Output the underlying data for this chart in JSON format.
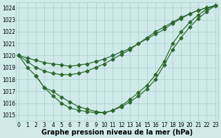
{
  "series": [
    {
      "name": "line_straight1",
      "x": [
        0,
        1,
        2,
        3,
        4,
        5,
        6,
        7,
        8,
        9,
        10,
        11,
        12,
        13,
        14,
        15,
        16,
        17,
        18,
        19,
        20,
        21,
        22,
        23
      ],
      "y": [
        1020.0,
        1019.8,
        1019.6,
        1019.4,
        1019.3,
        1019.2,
        1019.1,
        1019.2,
        1019.3,
        1019.5,
        1019.7,
        1020.0,
        1020.3,
        1020.6,
        1021.0,
        1021.4,
        1021.8,
        1022.2,
        1022.7,
        1023.1,
        1023.5,
        1023.8,
        1024.0,
        1024.2
      ]
    },
    {
      "name": "line_straight2",
      "x": [
        0,
        1,
        2,
        3,
        4,
        5,
        6,
        7,
        8,
        9,
        10,
        11,
        12,
        13,
        14,
        15,
        16,
        17,
        18,
        19,
        20,
        21,
        22,
        23
      ],
      "y": [
        1020.0,
        1019.5,
        1019.0,
        1018.7,
        1018.5,
        1018.4,
        1018.4,
        1018.5,
        1018.7,
        1019.0,
        1019.3,
        1019.7,
        1020.1,
        1020.5,
        1021.0,
        1021.5,
        1022.0,
        1022.4,
        1022.8,
        1023.2,
        1023.5,
        1023.8,
        1024.0,
        1024.2
      ]
    },
    {
      "name": "line_deep1",
      "x": [
        0,
        1,
        2,
        3,
        4,
        5,
        6,
        7,
        8,
        9,
        10,
        11,
        12,
        13,
        14,
        15,
        16,
        17,
        18,
        19,
        20,
        21,
        22,
        23
      ],
      "y": [
        1020.0,
        1019.0,
        1018.3,
        1017.3,
        1016.6,
        1016.0,
        1015.6,
        1015.4,
        1015.3,
        1015.2,
        1015.2,
        1015.4,
        1015.7,
        1016.1,
        1016.6,
        1017.2,
        1018.0,
        1019.2,
        1020.5,
        1021.5,
        1022.4,
        1023.1,
        1023.7,
        1024.2
      ]
    },
    {
      "name": "line_deep2",
      "x": [
        2,
        3,
        4,
        5,
        6,
        7,
        8,
        9,
        10,
        11,
        12,
        13,
        14,
        15,
        16,
        17,
        18,
        19,
        20,
        21,
        22,
        23
      ],
      "y": [
        1018.3,
        1017.3,
        1017.0,
        1016.5,
        1016.1,
        1015.7,
        1015.5,
        1015.3,
        1015.2,
        1015.4,
        1015.8,
        1016.3,
        1016.9,
        1017.5,
        1018.4,
        1019.5,
        1021.0,
        1022.0,
        1022.8,
        1023.4,
        1023.9,
        1024.2
      ]
    }
  ],
  "line_color": "#2d6a2d",
  "marker": "D",
  "marker_size": 2.5,
  "xlim": [
    -0.3,
    23.3
  ],
  "ylim": [
    1014.5,
    1024.5
  ],
  "yticks": [
    1015,
    1016,
    1017,
    1018,
    1019,
    1020,
    1021,
    1022,
    1023,
    1024
  ],
  "xticks": [
    0,
    1,
    2,
    3,
    4,
    5,
    6,
    7,
    8,
    9,
    10,
    11,
    12,
    13,
    14,
    15,
    16,
    17,
    18,
    19,
    20,
    21,
    22,
    23
  ],
  "xlabel": "Graphe pression niveau de la mer (hPa)",
  "background_color": "#d0eaea",
  "grid_color": "#a8cccc",
  "tick_fontsize": 5.5,
  "xlabel_fontsize": 7.0,
  "linewidth": 0.9
}
